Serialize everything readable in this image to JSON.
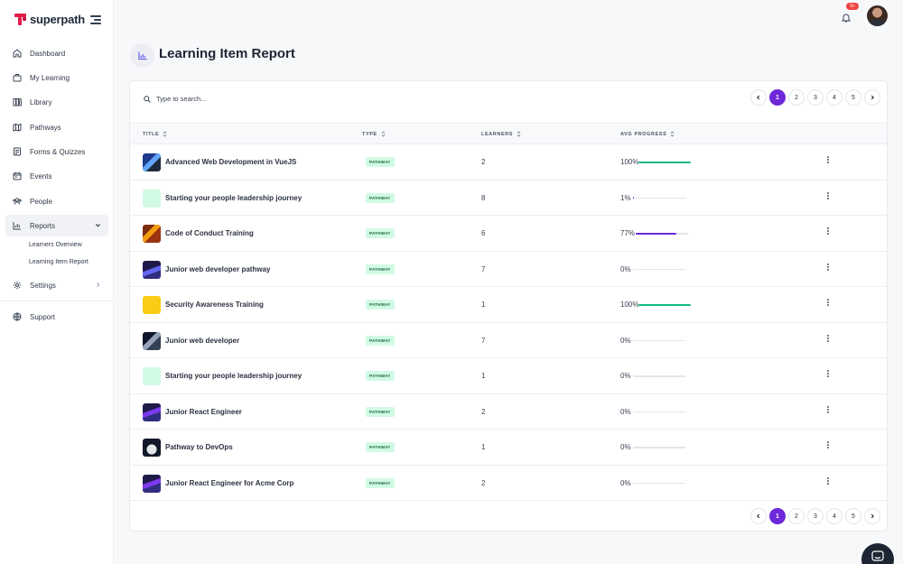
{
  "brand": {
    "name": "superpath"
  },
  "sidebar": {
    "items": [
      {
        "label": "Dashboard",
        "icon": "home-icon"
      },
      {
        "label": "My Learning",
        "icon": "briefcase-icon"
      },
      {
        "label": "Library",
        "icon": "library-icon"
      },
      {
        "label": "Pathways",
        "icon": "map-icon"
      },
      {
        "label": "Forms & Quizzes",
        "icon": "form-icon"
      },
      {
        "label": "Events",
        "icon": "calendar-icon"
      },
      {
        "label": "People",
        "icon": "people-icon"
      },
      {
        "label": "Reports",
        "icon": "bar-chart-icon"
      },
      {
        "label": "Settings",
        "icon": "gear-icon"
      },
      {
        "label": "Support",
        "icon": "globe-icon"
      }
    ],
    "reports_sub": [
      {
        "label": "Learners Overview"
      },
      {
        "label": "Learning Item Report"
      }
    ]
  },
  "topbar": {
    "notification_count": "9+"
  },
  "page": {
    "title": "Learning Item Report"
  },
  "search": {
    "placeholder": "Type to search..."
  },
  "pagination": {
    "pages": [
      "1",
      "2",
      "3",
      "4",
      "5"
    ],
    "current": "1"
  },
  "table": {
    "columns": {
      "title": "TITLE",
      "type": "TYPE",
      "learners": "LEARNERS",
      "avg_progress": "AVG PROGRESS"
    },
    "rows": [
      {
        "title": "Advanced Web Development in VueJS",
        "type": "PATHWAY",
        "learners": "2",
        "progress": "100%",
        "progress_value": 100
      },
      {
        "title": "Starting your people leadership journey",
        "type": "PATHWAY",
        "learners": "8",
        "progress": "1%",
        "progress_value": 1
      },
      {
        "title": "Code of Conduct Training",
        "type": "PATHWAY",
        "learners": "6",
        "progress": "77%",
        "progress_value": 77
      },
      {
        "title": "Junior web developer pathway",
        "type": "PATHWAY",
        "learners": "7",
        "progress": "0%",
        "progress_value": 0
      },
      {
        "title": "Security Awareness Training",
        "type": "PATHWAY",
        "learners": "1",
        "progress": "100%",
        "progress_value": 100
      },
      {
        "title": "Junior web developer",
        "type": "PATHWAY",
        "learners": "7",
        "progress": "0%",
        "progress_value": 0
      },
      {
        "title": "Starting your people leadership journey",
        "type": "PATHWAY",
        "learners": "1",
        "progress": "0%",
        "progress_value": 0
      },
      {
        "title": "Junior React Engineer",
        "type": "PATHWAY",
        "learners": "2",
        "progress": "0%",
        "progress_value": 0
      },
      {
        "title": "Pathway to DevOps",
        "type": "PATHWAY",
        "learners": "1",
        "progress": "0%",
        "progress_value": 0
      },
      {
        "title": "Junior React Engineer for Acme Corp",
        "type": "PATHWAY",
        "learners": "2",
        "progress": "0%",
        "progress_value": 0
      }
    ]
  },
  "colors": {
    "accent": "#6d28d9",
    "progress_complete": "#10b981",
    "progress_partial": "#6d28d9",
    "tag_bg": "#d1fae5",
    "brand": "#e11d48"
  }
}
